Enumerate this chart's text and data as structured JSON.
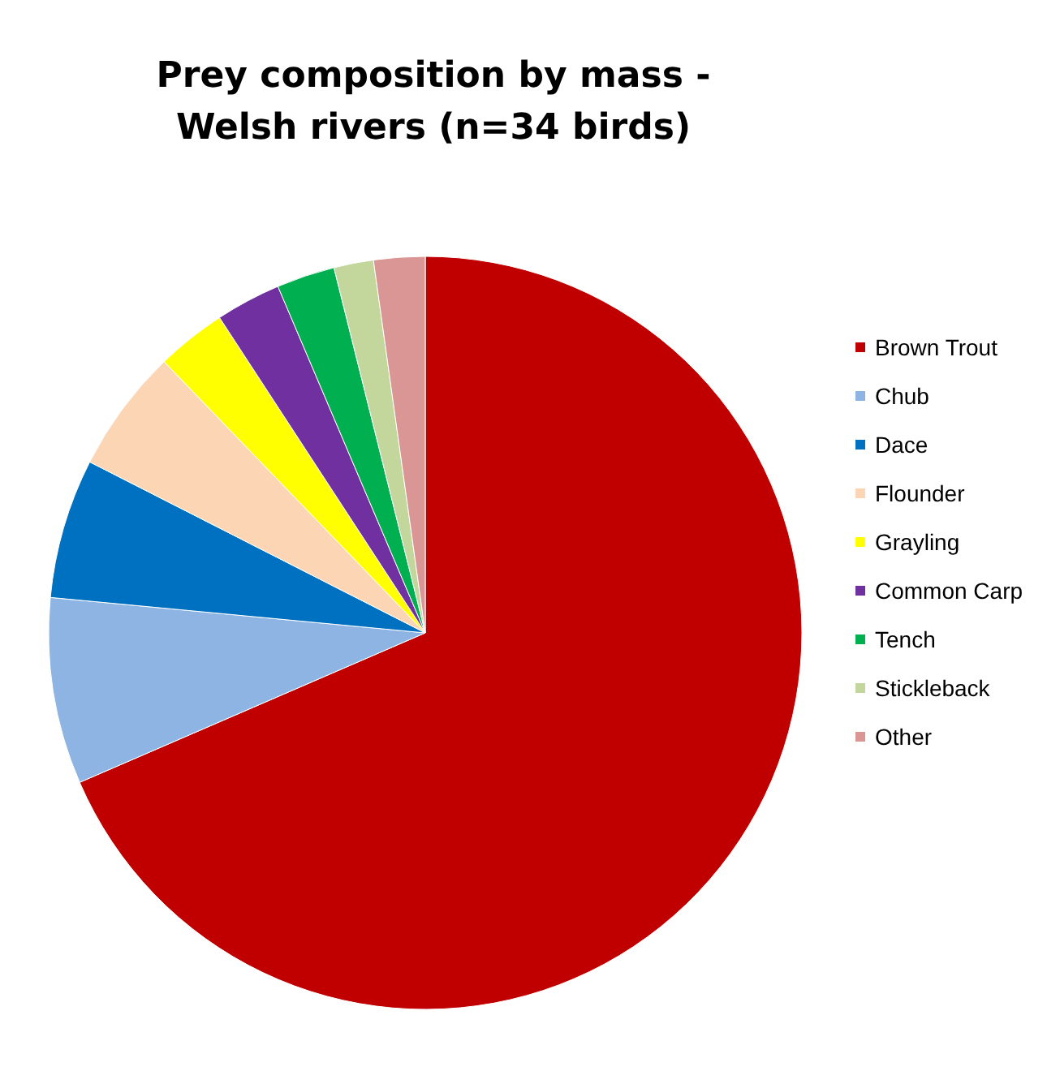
{
  "chart_data": {
    "type": "pie",
    "title": "Prey composition by mass -\nWelsh rivers (n=34 birds)",
    "categories": [
      "Brown Trout",
      "Chub",
      "Dace",
      "Flounder",
      "Grayling",
      "Common Carp",
      "Tench",
      "Stickleback",
      "Other"
    ],
    "values": [
      68.5,
      8,
      6,
      5.3,
      3,
      2.8,
      2.5,
      1.7,
      2.2
    ],
    "colors": [
      "#c00000",
      "#8db4e2",
      "#0070c0",
      "#fcd5b5",
      "#ffff00",
      "#7030a0",
      "#00b050",
      "#c3d69b",
      "#d99694"
    ],
    "legend": "right"
  }
}
